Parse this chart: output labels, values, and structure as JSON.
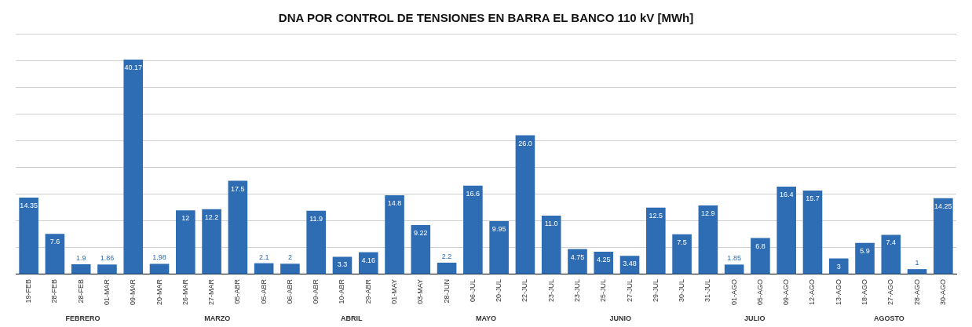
{
  "chart_data": {
    "type": "bar",
    "title": "DNA POR CONTROL DE TENSIONES EN BARRA EL BANCO 110 kV [MWh]",
    "categories": [
      "19-FEB",
      "28-FEB",
      "28-FEB",
      "01-MAR",
      "09-MAR",
      "20-MAR",
      "26-MAR",
      "27-MAR",
      "05-ABR",
      "05-ABR",
      "06-ABR",
      "09-ABR",
      "10-ABR",
      "29-ABR",
      "01-MAY",
      "03-MAY",
      "28-JUN",
      "06-JUL",
      "20-JUL",
      "22-JUL",
      "23-JUL",
      "23-JUL",
      "25-JUL",
      "27-JUL",
      "29-JUL",
      "30-JUL",
      "31-JUL",
      "01-AGO",
      "05-AGO",
      "09-AGO",
      "12-AGO",
      "13-AGO",
      "18-AGO",
      "27-AGO",
      "28-AGO",
      "30-AGO"
    ],
    "values": [
      14.35,
      7.6,
      1.9,
      1.86,
      40.17,
      1.98,
      12,
      12.2,
      17.5,
      2.1,
      2,
      11.9,
      3.3,
      4.16,
      14.8,
      9.22,
      2.2,
      16.6,
      9.95,
      26.0,
      11.0,
      4.75,
      4.25,
      3.48,
      12.5,
      7.5,
      12.9,
      1.85,
      6.8,
      16.4,
      15.7,
      3,
      5.9,
      7.4,
      1,
      14.25
    ],
    "value_labels": [
      "14.35",
      "7.6",
      "1.9",
      "1.86",
      "40.17",
      "1.98",
      "12",
      "12.2",
      "17.5",
      "2.1",
      "2",
      "11.9",
      "3.3",
      "4.16",
      "14.8",
      "9.22",
      "2.2",
      "16.6",
      "9.95",
      "26.0",
      "11.0",
      "4.75",
      "4.25",
      "3.48",
      "12.5",
      "7.5",
      "12.9",
      "1.85",
      "6.8",
      "16.4",
      "15.7",
      "3",
      "5.9",
      "7.4",
      "1",
      "14.25"
    ],
    "color": "#2e6db4",
    "ylim": [
      0,
      45
    ],
    "yticks": [
      {
        "value": 0,
        "label": null
      },
      {
        "value": 5,
        "label": null
      },
      {
        "value": 10,
        "label": null
      },
      {
        "value": 15,
        "label": null
      },
      {
        "value": 20,
        "label": null
      },
      {
        "value": 25,
        "label": null
      },
      {
        "value": 30,
        "label": null
      },
      {
        "value": 35,
        "label": null
      },
      {
        "value": 40,
        "label": null
      },
      {
        "value": 45,
        "label": null
      }
    ],
    "grid": "y",
    "tick_labels": "x",
    "annotations": [
      "FEBRERO",
      "MARZO",
      "ABRIL",
      "MAYO",
      "JUNIO",
      "JULIO",
      "AGOSTO"
    ]
  }
}
